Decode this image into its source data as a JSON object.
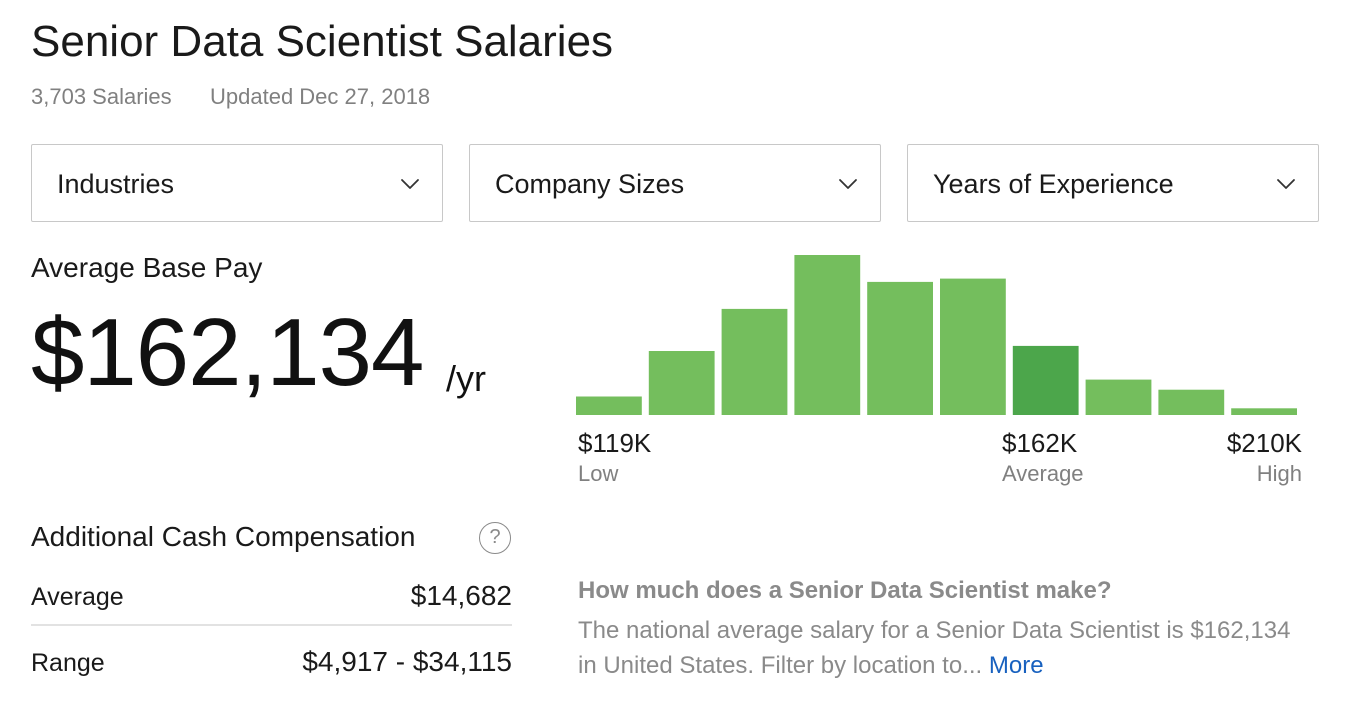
{
  "header": {
    "title": "Senior Data Scientist Salaries",
    "salaries_count": "3,703 Salaries",
    "updated": "Updated Dec 27, 2018"
  },
  "filters": [
    {
      "label": "Industries",
      "icon": "chevron-down-icon"
    },
    {
      "label": "Company Sizes",
      "icon": "chevron-down-icon"
    },
    {
      "label": "Years of Experience",
      "icon": "chevron-down-icon"
    }
  ],
  "base_pay": {
    "heading": "Average Base Pay",
    "amount": "$162,134",
    "unit": "/yr"
  },
  "chart_data": {
    "type": "bar",
    "title": "",
    "categories": [
      "1",
      "2",
      "3",
      "4",
      "5",
      "6",
      "7",
      "8",
      "9",
      "10"
    ],
    "values": [
      11,
      38,
      63,
      95,
      79,
      81,
      41,
      21,
      15,
      4
    ],
    "highlight_index": 6,
    "colors": {
      "bar": "#74be5d",
      "highlight": "#4ca64b"
    },
    "axis": {
      "low": {
        "value": "$119K",
        "label": "Low"
      },
      "average": {
        "value": "$162K",
        "label": "Average"
      },
      "high": {
        "value": "$210K",
        "label": "High"
      }
    },
    "grid": false
  },
  "additional": {
    "heading": "Additional Cash Compensation",
    "help_icon": "?",
    "rows": [
      {
        "label": "Average",
        "value": "$14,682"
      },
      {
        "label": "Range",
        "value": "$4,917 - $34,115"
      }
    ]
  },
  "faq": {
    "question": "How much does a Senior Data Scientist make?",
    "answer": "The national average salary for a Senior Data Scientist is $162,134 in United States. Filter by location to...",
    "more": "More"
  }
}
